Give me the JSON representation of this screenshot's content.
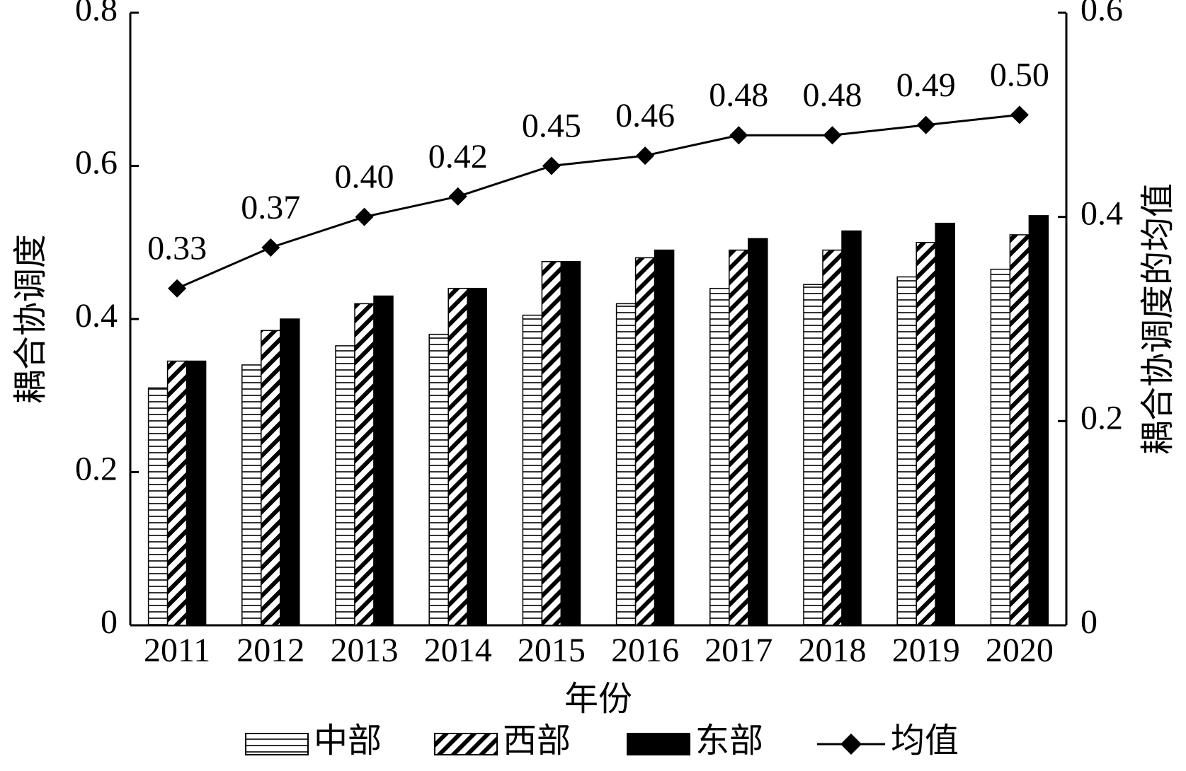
{
  "chart_data": {
    "type": "bar-line",
    "x_label": "年份",
    "y_label": "耦合协调度",
    "y2_label": "耦合协调度的均值",
    "categories": [
      "2011",
      "2012",
      "2013",
      "2014",
      "2015",
      "2016",
      "2017",
      "2018",
      "2019",
      "2020"
    ],
    "series": [
      {
        "name": "中部",
        "type": "bar",
        "color": "#000000",
        "pattern": "horizontal",
        "values": [
          0.31,
          0.34,
          0.365,
          0.38,
          0.405,
          0.42,
          0.44,
          0.445,
          0.455,
          0.465
        ]
      },
      {
        "name": "西部",
        "type": "bar",
        "color": "#000000",
        "pattern": "diagonal",
        "values": [
          0.345,
          0.385,
          0.42,
          0.44,
          0.475,
          0.48,
          0.49,
          0.49,
          0.5,
          0.51
        ]
      },
      {
        "name": "东部",
        "type": "bar",
        "color": "#000000",
        "pattern": "solid",
        "values": [
          0.345,
          0.4,
          0.43,
          0.44,
          0.475,
          0.49,
          0.505,
          0.515,
          0.525,
          0.535
        ]
      },
      {
        "name": "均值",
        "type": "line",
        "axis": "y2",
        "color": "#000000",
        "marker": "diamond",
        "values": [
          0.33,
          0.37,
          0.4,
          0.42,
          0.45,
          0.46,
          0.48,
          0.48,
          0.49,
          0.5
        ],
        "value_labels": [
          "0.33",
          "0.37",
          "0.40",
          "0.42",
          "0.45",
          "0.46",
          "0.48",
          "0.48",
          "0.49",
          "0.50"
        ]
      }
    ],
    "ylim": [
      0,
      0.8
    ],
    "yticks": [
      0,
      0.2,
      0.4,
      0.6,
      0.8
    ],
    "y2lim": [
      0,
      0.6
    ],
    "y2ticks": [
      0,
      0.2,
      0.4,
      0.6
    ],
    "grid": false,
    "legend": "bottom"
  }
}
